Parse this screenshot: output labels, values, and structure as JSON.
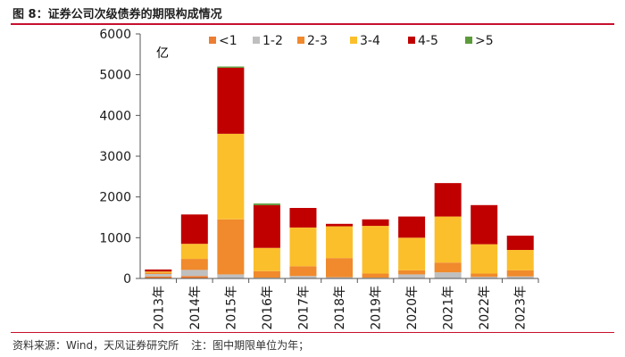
{
  "figure_title": "图 8：证券公司次级债券的期限构成情况",
  "source": "资料来源：Wind，天风证券研究所",
  "note": "注：图中期限单位为年；",
  "chart_data": {
    "type": "bar",
    "stacked": true,
    "unit_label": "亿",
    "categories": [
      "2013年",
      "2014年",
      "2015年",
      "2016年",
      "2017年",
      "2018年",
      "2019年",
      "2020年",
      "2021年",
      "2022年",
      "2023年"
    ],
    "ylim": [
      0,
      6000
    ],
    "yticks": [
      0,
      1000,
      2000,
      3000,
      4000,
      5000,
      6000
    ],
    "legend_position": "top",
    "series": [
      {
        "name": "<1",
        "color": "#ed7d31",
        "values": [
          50,
          60,
          0,
          0,
          0,
          0,
          0,
          0,
          0,
          0,
          0
        ]
      },
      {
        "name": "1-2",
        "color": "#bfbfbf",
        "values": [
          60,
          150,
          100,
          20,
          60,
          30,
          20,
          100,
          150,
          40,
          50
        ]
      },
      {
        "name": "2-3",
        "color": "#f08a2c",
        "values": [
          30,
          270,
          1350,
          160,
          240,
          470,
          100,
          100,
          240,
          80,
          150
        ]
      },
      {
        "name": "3-4",
        "color": "#fbbf2c",
        "values": [
          30,
          370,
          2100,
          570,
          950,
          780,
          1170,
          800,
          1130,
          720,
          500
        ]
      },
      {
        "name": "4-5",
        "color": "#c00000",
        "values": [
          50,
          720,
          1620,
          1050,
          480,
          60,
          160,
          520,
          820,
          960,
          350
        ]
      },
      {
        "name": ">5",
        "color": "#5b9b3a",
        "values": [
          0,
          0,
          30,
          40,
          0,
          0,
          0,
          0,
          0,
          0,
          0
        ]
      }
    ]
  }
}
